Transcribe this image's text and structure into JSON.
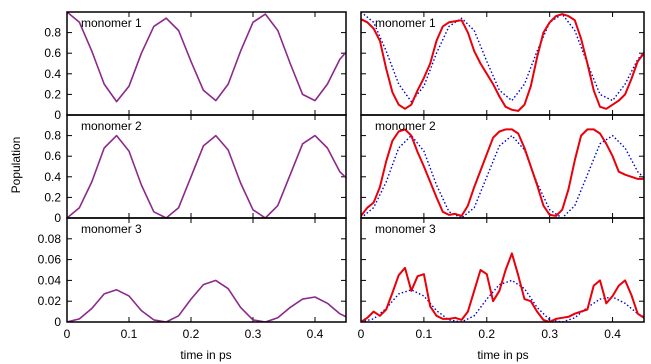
{
  "figure": {
    "ylabel": "Population",
    "xlabel": "time in ps",
    "colors": {
      "red": "#e8000b",
      "blue": "#0000cc",
      "purple": "#8b2a8b"
    }
  },
  "chart_data": [
    {
      "type": "line",
      "column": "left",
      "row": 0,
      "annotation": "monomer 1",
      "xlim": [
        0,
        0.45
      ],
      "ylim": [
        0,
        1.0
      ],
      "yticks": [
        "0",
        "0.2",
        "0.4",
        "0.6",
        "0.8"
      ],
      "ytick_values": [
        0,
        0.2,
        0.4,
        0.6,
        0.8
      ],
      "xticks": [],
      "xtick_values": [],
      "series": [
        {
          "style": "purple",
          "x": [
            0,
            0.02,
            0.04,
            0.06,
            0.08,
            0.1,
            0.12,
            0.14,
            0.16,
            0.18,
            0.2,
            0.22,
            0.24,
            0.26,
            0.28,
            0.3,
            0.32,
            0.34,
            0.36,
            0.38,
            0.4,
            0.42,
            0.44,
            0.45
          ],
          "y": [
            1.0,
            0.9,
            0.62,
            0.3,
            0.13,
            0.28,
            0.6,
            0.86,
            0.94,
            0.82,
            0.52,
            0.24,
            0.14,
            0.3,
            0.62,
            0.9,
            0.98,
            0.82,
            0.5,
            0.2,
            0.14,
            0.3,
            0.54,
            0.61
          ]
        }
      ]
    },
    {
      "type": "line",
      "column": "left",
      "row": 1,
      "annotation": "monomer 2",
      "xlim": [
        0,
        0.45
      ],
      "ylim": [
        0,
        1.0
      ],
      "yticks": [
        "0",
        "0.2",
        "0.4",
        "0.6",
        "0.8"
      ],
      "ytick_values": [
        0,
        0.2,
        0.4,
        0.6,
        0.8
      ],
      "xticks": [],
      "xtick_values": [],
      "series": [
        {
          "style": "purple",
          "x": [
            0,
            0.02,
            0.04,
            0.06,
            0.08,
            0.1,
            0.12,
            0.14,
            0.16,
            0.18,
            0.2,
            0.22,
            0.24,
            0.26,
            0.28,
            0.3,
            0.32,
            0.34,
            0.36,
            0.38,
            0.4,
            0.42,
            0.44,
            0.45
          ],
          "y": [
            0.0,
            0.1,
            0.35,
            0.68,
            0.8,
            0.65,
            0.32,
            0.06,
            0.0,
            0.1,
            0.4,
            0.7,
            0.8,
            0.66,
            0.34,
            0.08,
            0.0,
            0.12,
            0.42,
            0.72,
            0.8,
            0.68,
            0.45,
            0.39
          ]
        }
      ]
    },
    {
      "type": "line",
      "column": "left",
      "row": 2,
      "annotation": "monomer 3",
      "xlim": [
        0,
        0.45
      ],
      "ylim": [
        0,
        0.1
      ],
      "yticks": [
        "0",
        "0.02",
        "0.04",
        "0.06",
        "0.08"
      ],
      "ytick_values": [
        0,
        0.02,
        0.04,
        0.06,
        0.08
      ],
      "xticks": [
        "0",
        "0.1",
        "0.2",
        "0.3",
        "0.4"
      ],
      "xtick_values": [
        0,
        0.1,
        0.2,
        0.3,
        0.4
      ],
      "series": [
        {
          "style": "purple",
          "x": [
            0,
            0.02,
            0.04,
            0.06,
            0.08,
            0.1,
            0.12,
            0.14,
            0.16,
            0.18,
            0.2,
            0.22,
            0.24,
            0.26,
            0.28,
            0.3,
            0.32,
            0.34,
            0.36,
            0.38,
            0.4,
            0.42,
            0.44,
            0.45
          ],
          "y": [
            0.0,
            0.003,
            0.013,
            0.027,
            0.031,
            0.025,
            0.011,
            0.002,
            0.0,
            0.006,
            0.022,
            0.036,
            0.04,
            0.032,
            0.014,
            0.002,
            0.0,
            0.004,
            0.014,
            0.022,
            0.024,
            0.018,
            0.008,
            0.005
          ]
        }
      ]
    },
    {
      "type": "line",
      "column": "right",
      "row": 0,
      "annotation": "monomer 1",
      "xlim": [
        0,
        0.45
      ],
      "ylim": [
        0,
        1.0
      ],
      "yticks": [],
      "ytick_values": [
        0,
        0.2,
        0.4,
        0.6,
        0.8
      ],
      "xticks": [],
      "xtick_values": [],
      "series": [
        {
          "style": "blue",
          "dashed": true,
          "x": [
            0,
            0.02,
            0.04,
            0.06,
            0.08,
            0.1,
            0.12,
            0.14,
            0.16,
            0.18,
            0.2,
            0.22,
            0.24,
            0.26,
            0.28,
            0.3,
            0.32,
            0.34,
            0.36,
            0.38,
            0.4,
            0.42,
            0.44,
            0.45
          ],
          "y": [
            1.0,
            0.9,
            0.62,
            0.3,
            0.13,
            0.28,
            0.6,
            0.86,
            0.94,
            0.82,
            0.52,
            0.24,
            0.14,
            0.3,
            0.62,
            0.9,
            0.98,
            0.82,
            0.5,
            0.2,
            0.14,
            0.3,
            0.54,
            0.61
          ]
        },
        {
          "style": "red",
          "x": [
            0,
            0.01,
            0.02,
            0.03,
            0.04,
            0.05,
            0.06,
            0.07,
            0.08,
            0.09,
            0.1,
            0.11,
            0.12,
            0.13,
            0.14,
            0.15,
            0.16,
            0.17,
            0.18,
            0.19,
            0.2,
            0.21,
            0.22,
            0.23,
            0.24,
            0.25,
            0.26,
            0.27,
            0.28,
            0.29,
            0.3,
            0.31,
            0.32,
            0.33,
            0.34,
            0.35,
            0.36,
            0.37,
            0.38,
            0.39,
            0.4,
            0.41,
            0.42,
            0.43,
            0.44,
            0.45
          ],
          "y": [
            0.93,
            0.9,
            0.84,
            0.72,
            0.45,
            0.22,
            0.1,
            0.06,
            0.1,
            0.24,
            0.36,
            0.5,
            0.72,
            0.86,
            0.9,
            0.91,
            0.92,
            0.8,
            0.62,
            0.5,
            0.4,
            0.3,
            0.18,
            0.08,
            0.05,
            0.04,
            0.1,
            0.28,
            0.56,
            0.8,
            0.9,
            0.96,
            0.98,
            0.96,
            0.92,
            0.74,
            0.5,
            0.24,
            0.08,
            0.06,
            0.1,
            0.14,
            0.2,
            0.35,
            0.52,
            0.6
          ]
        }
      ]
    },
    {
      "type": "line",
      "column": "right",
      "row": 1,
      "annotation": "monomer 2",
      "xlim": [
        0,
        0.45
      ],
      "ylim": [
        0,
        1.0
      ],
      "yticks": [],
      "ytick_values": [
        0,
        0.2,
        0.4,
        0.6,
        0.8
      ],
      "xticks": [],
      "xtick_values": [],
      "series": [
        {
          "style": "blue",
          "dashed": true,
          "x": [
            0,
            0.02,
            0.04,
            0.06,
            0.08,
            0.1,
            0.12,
            0.14,
            0.16,
            0.18,
            0.2,
            0.22,
            0.24,
            0.26,
            0.28,
            0.3,
            0.32,
            0.34,
            0.36,
            0.38,
            0.4,
            0.42,
            0.44,
            0.45
          ],
          "y": [
            0.0,
            0.1,
            0.35,
            0.68,
            0.8,
            0.65,
            0.32,
            0.06,
            0.0,
            0.1,
            0.4,
            0.7,
            0.8,
            0.66,
            0.34,
            0.08,
            0.0,
            0.12,
            0.42,
            0.72,
            0.8,
            0.68,
            0.45,
            0.39
          ]
        },
        {
          "style": "red",
          "x": [
            0,
            0.01,
            0.02,
            0.03,
            0.04,
            0.05,
            0.06,
            0.07,
            0.08,
            0.09,
            0.1,
            0.11,
            0.12,
            0.13,
            0.14,
            0.15,
            0.16,
            0.17,
            0.18,
            0.19,
            0.2,
            0.21,
            0.22,
            0.23,
            0.24,
            0.25,
            0.26,
            0.27,
            0.28,
            0.29,
            0.3,
            0.31,
            0.32,
            0.33,
            0.34,
            0.35,
            0.36,
            0.37,
            0.38,
            0.39,
            0.4,
            0.41,
            0.42,
            0.43,
            0.44,
            0.45
          ],
          "y": [
            0.02,
            0.1,
            0.15,
            0.3,
            0.55,
            0.75,
            0.84,
            0.86,
            0.8,
            0.64,
            0.5,
            0.35,
            0.2,
            0.06,
            0.03,
            0.04,
            0.02,
            0.12,
            0.3,
            0.46,
            0.62,
            0.78,
            0.84,
            0.86,
            0.86,
            0.82,
            0.68,
            0.5,
            0.32,
            0.12,
            0.03,
            0.02,
            0.08,
            0.28,
            0.56,
            0.8,
            0.86,
            0.86,
            0.82,
            0.72,
            0.6,
            0.45,
            0.42,
            0.4,
            0.38,
            0.38
          ]
        }
      ]
    },
    {
      "type": "line",
      "column": "right",
      "row": 2,
      "annotation": "monomer 3",
      "xlim": [
        0,
        0.45
      ],
      "ylim": [
        0,
        0.1
      ],
      "yticks": [],
      "ytick_values": [
        0,
        0.02,
        0.04,
        0.06,
        0.08
      ],
      "xticks": [
        "0",
        "0.1",
        "0.2",
        "0.3",
        "0.4"
      ],
      "xtick_values": [
        0,
        0.1,
        0.2,
        0.3,
        0.4
      ],
      "series": [
        {
          "style": "blue",
          "dashed": true,
          "x": [
            0,
            0.02,
            0.04,
            0.06,
            0.08,
            0.1,
            0.12,
            0.14,
            0.16,
            0.18,
            0.2,
            0.22,
            0.24,
            0.26,
            0.28,
            0.3,
            0.32,
            0.34,
            0.36,
            0.38,
            0.4,
            0.42,
            0.44,
            0.45
          ],
          "y": [
            0.0,
            0.003,
            0.013,
            0.027,
            0.031,
            0.025,
            0.011,
            0.002,
            0.0,
            0.006,
            0.022,
            0.036,
            0.04,
            0.032,
            0.014,
            0.002,
            0.0,
            0.004,
            0.014,
            0.022,
            0.024,
            0.018,
            0.008,
            0.005
          ]
        },
        {
          "style": "red",
          "x": [
            0,
            0.01,
            0.02,
            0.03,
            0.04,
            0.05,
            0.06,
            0.07,
            0.08,
            0.09,
            0.1,
            0.11,
            0.12,
            0.13,
            0.14,
            0.15,
            0.16,
            0.17,
            0.18,
            0.19,
            0.2,
            0.21,
            0.22,
            0.23,
            0.24,
            0.25,
            0.26,
            0.27,
            0.28,
            0.29,
            0.3,
            0.31,
            0.32,
            0.33,
            0.34,
            0.35,
            0.36,
            0.37,
            0.38,
            0.39,
            0.4,
            0.41,
            0.42,
            0.43,
            0.44,
            0.45
          ],
          "y": [
            0.0,
            0.004,
            0.01,
            0.006,
            0.012,
            0.028,
            0.045,
            0.052,
            0.03,
            0.044,
            0.046,
            0.015,
            0.006,
            0.003,
            0.003,
            0.004,
            0.002,
            0.01,
            0.03,
            0.05,
            0.046,
            0.02,
            0.03,
            0.05,
            0.066,
            0.045,
            0.022,
            0.02,
            0.01,
            0.002,
            0.0,
            0.003,
            0.004,
            0.005,
            0.008,
            0.01,
            0.012,
            0.035,
            0.04,
            0.018,
            0.025,
            0.035,
            0.04,
            0.026,
            0.008,
            0.004
          ]
        }
      ]
    }
  ]
}
